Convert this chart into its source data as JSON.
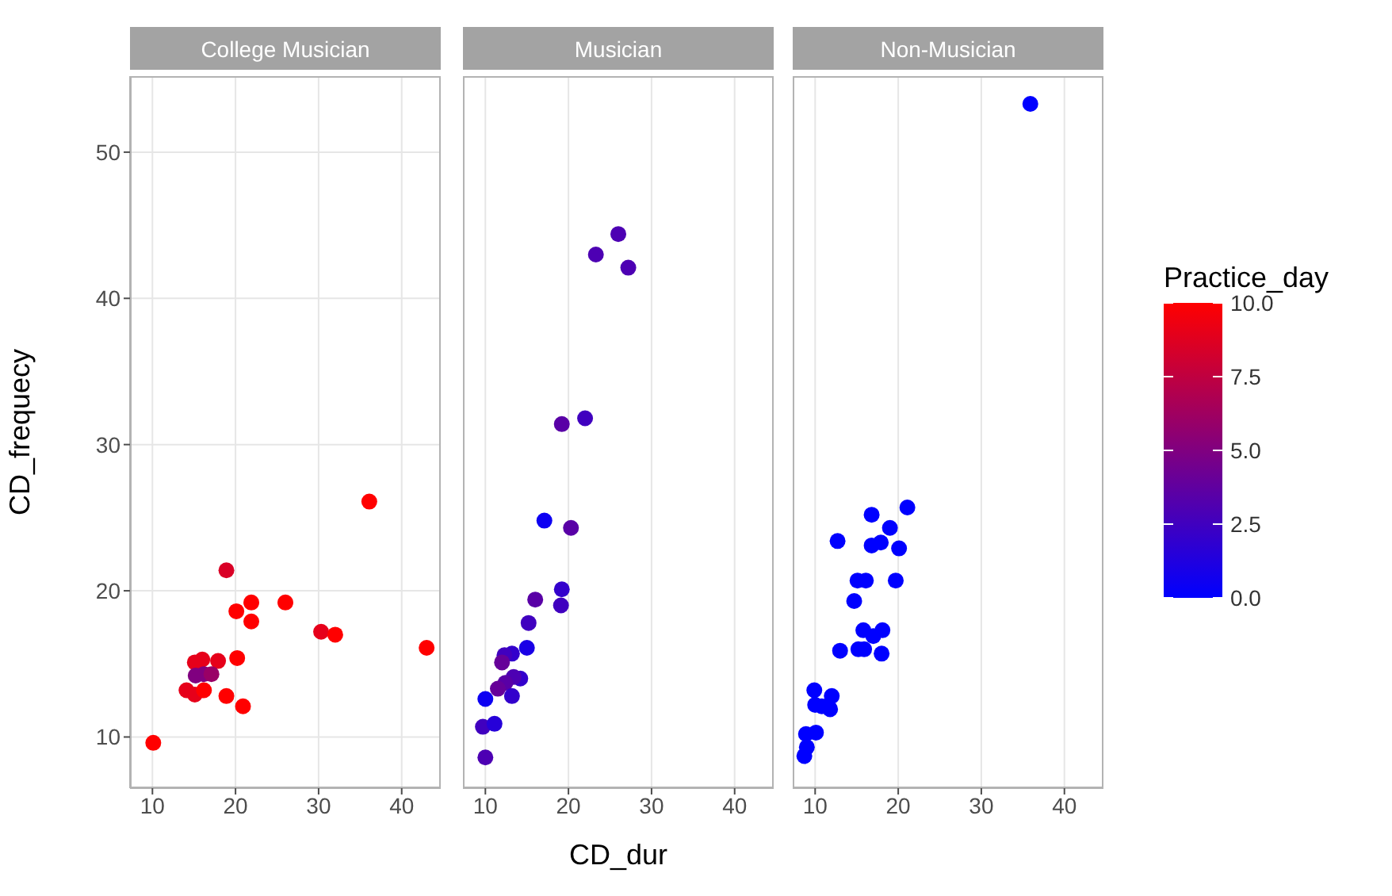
{
  "chart_data": [
    {
      "type": "scatter",
      "title": "College Musician",
      "ylabel": "CD_frequecy",
      "xlim": [
        7.3,
        44.7
      ],
      "ylim": [
        6.5,
        55.2
      ],
      "xticks": [
        10,
        20,
        30,
        40
      ],
      "yticks": [
        10,
        20,
        30,
        40,
        50
      ],
      "grid": true,
      "marker": "circle",
      "x": [
        10.1,
        36.1,
        18.9,
        20.1,
        21.9,
        21.9,
        26.0,
        30.3,
        32.0,
        43.0,
        20.2,
        17.9,
        16.0,
        15.1,
        15.2,
        16.2,
        17.1,
        14.1,
        15.1,
        16.2,
        18.9,
        20.9
      ],
      "values": [
        9.6,
        26.1,
        21.4,
        18.6,
        19.2,
        17.9,
        19.2,
        17.2,
        17.0,
        16.1,
        15.4,
        15.2,
        15.3,
        15.1,
        14.2,
        14.3,
        14.3,
        13.2,
        12.9,
        13.2,
        12.8,
        12.1
      ],
      "colors": [
        "#ff0000",
        "#ff0000",
        "#d90026",
        "#ff0000",
        "#ff0000",
        "#ff0000",
        "#ff0000",
        "#e6001a",
        "#ff0000",
        "#ff0000",
        "#ff0000",
        "#e6001a",
        "#e6001a",
        "#e6001a",
        "#800080",
        "#800080",
        "#990066",
        "#e6001a",
        "#e6001a",
        "#ff0000",
        "#ff0000",
        "#ff0000"
      ]
    },
    {
      "type": "scatter",
      "title": "Musician",
      "xlabel": "CD_dur",
      "xlim": [
        7.3,
        44.7
      ],
      "ylim": [
        6.5,
        55.2
      ],
      "xticks": [
        10,
        20,
        30,
        40
      ],
      "yticks": [
        10,
        20,
        30,
        40,
        50
      ],
      "grid": true,
      "marker": "circle",
      "tick_labels": "x",
      "x": [
        26.0,
        23.3,
        27.2,
        19.2,
        22.0,
        17.1,
        20.3,
        19.2,
        19.1,
        16.0,
        15.2,
        15.0,
        13.2,
        12.3,
        12.0,
        14.2,
        13.4,
        12.4,
        11.5,
        13.2,
        10.0,
        9.7,
        11.1,
        10.0
      ],
      "values": [
        44.4,
        43.0,
        42.1,
        31.4,
        31.8,
        24.8,
        24.3,
        20.1,
        19.0,
        19.4,
        17.8,
        16.1,
        15.7,
        15.6,
        15.1,
        14.0,
        14.1,
        13.7,
        13.3,
        12.8,
        12.6,
        10.7,
        10.9,
        8.6
      ],
      "colors": [
        "#4d00b3",
        "#4d00b3",
        "#4d00b3",
        "#5900a6",
        "#4000bf",
        "#0d00f2",
        "#5900a6",
        "#3300cc",
        "#4000bf",
        "#5900a6",
        "#4000bf",
        "#1a00e6",
        "#3300cc",
        "#4000bf",
        "#660099",
        "#3300cc",
        "#4d00b3",
        "#5900a6",
        "#660099",
        "#3300cc",
        "#0d00f2",
        "#4000bf",
        "#2600d9",
        "#4d00b3"
      ]
    },
    {
      "type": "scatter",
      "title": "Non-Musician",
      "clabel": "Practice_day",
      "clim": [
        0,
        10
      ],
      "cticks": [
        {
          "value": 0,
          "label": "0.0"
        },
        {
          "value": 2.5,
          "label": "2.5"
        },
        {
          "value": 5,
          "label": "5.0"
        },
        {
          "value": 7.5,
          "label": "7.5"
        },
        {
          "value": 10,
          "label": "10.0"
        }
      ],
      "xlim": [
        7.3,
        44.7
      ],
      "ylim": [
        6.5,
        55.2
      ],
      "xticks": [
        10,
        20,
        30,
        40
      ],
      "yticks": [
        10,
        20,
        30,
        40,
        50
      ],
      "grid": true,
      "marker": "circle",
      "tick_labels": "x",
      "x": [
        35.9,
        21.1,
        16.8,
        19.0,
        12.7,
        16.8,
        17.9,
        20.1,
        15.1,
        16.1,
        19.7,
        14.7,
        15.8,
        18.1,
        17.0,
        13.0,
        15.2,
        15.9,
        18.0,
        9.9,
        12.0,
        10.0,
        11.8,
        10.8,
        8.9,
        10.1,
        9.0,
        8.7
      ],
      "values": [
        53.3,
        25.7,
        25.2,
        24.3,
        23.4,
        23.1,
        23.3,
        22.9,
        20.7,
        20.7,
        20.7,
        19.3,
        17.3,
        17.3,
        16.9,
        15.9,
        16.0,
        16.0,
        15.7,
        13.2,
        12.8,
        12.2,
        11.9,
        12.1,
        10.2,
        10.3,
        9.3,
        8.7
      ],
      "cvalues": [
        0,
        0,
        0,
        0,
        0,
        0,
        0,
        0,
        0,
        0,
        0,
        0,
        0,
        0,
        0,
        0,
        0,
        0,
        0,
        0,
        0,
        0,
        0,
        0,
        0,
        0,
        0,
        0
      ]
    }
  ]
}
